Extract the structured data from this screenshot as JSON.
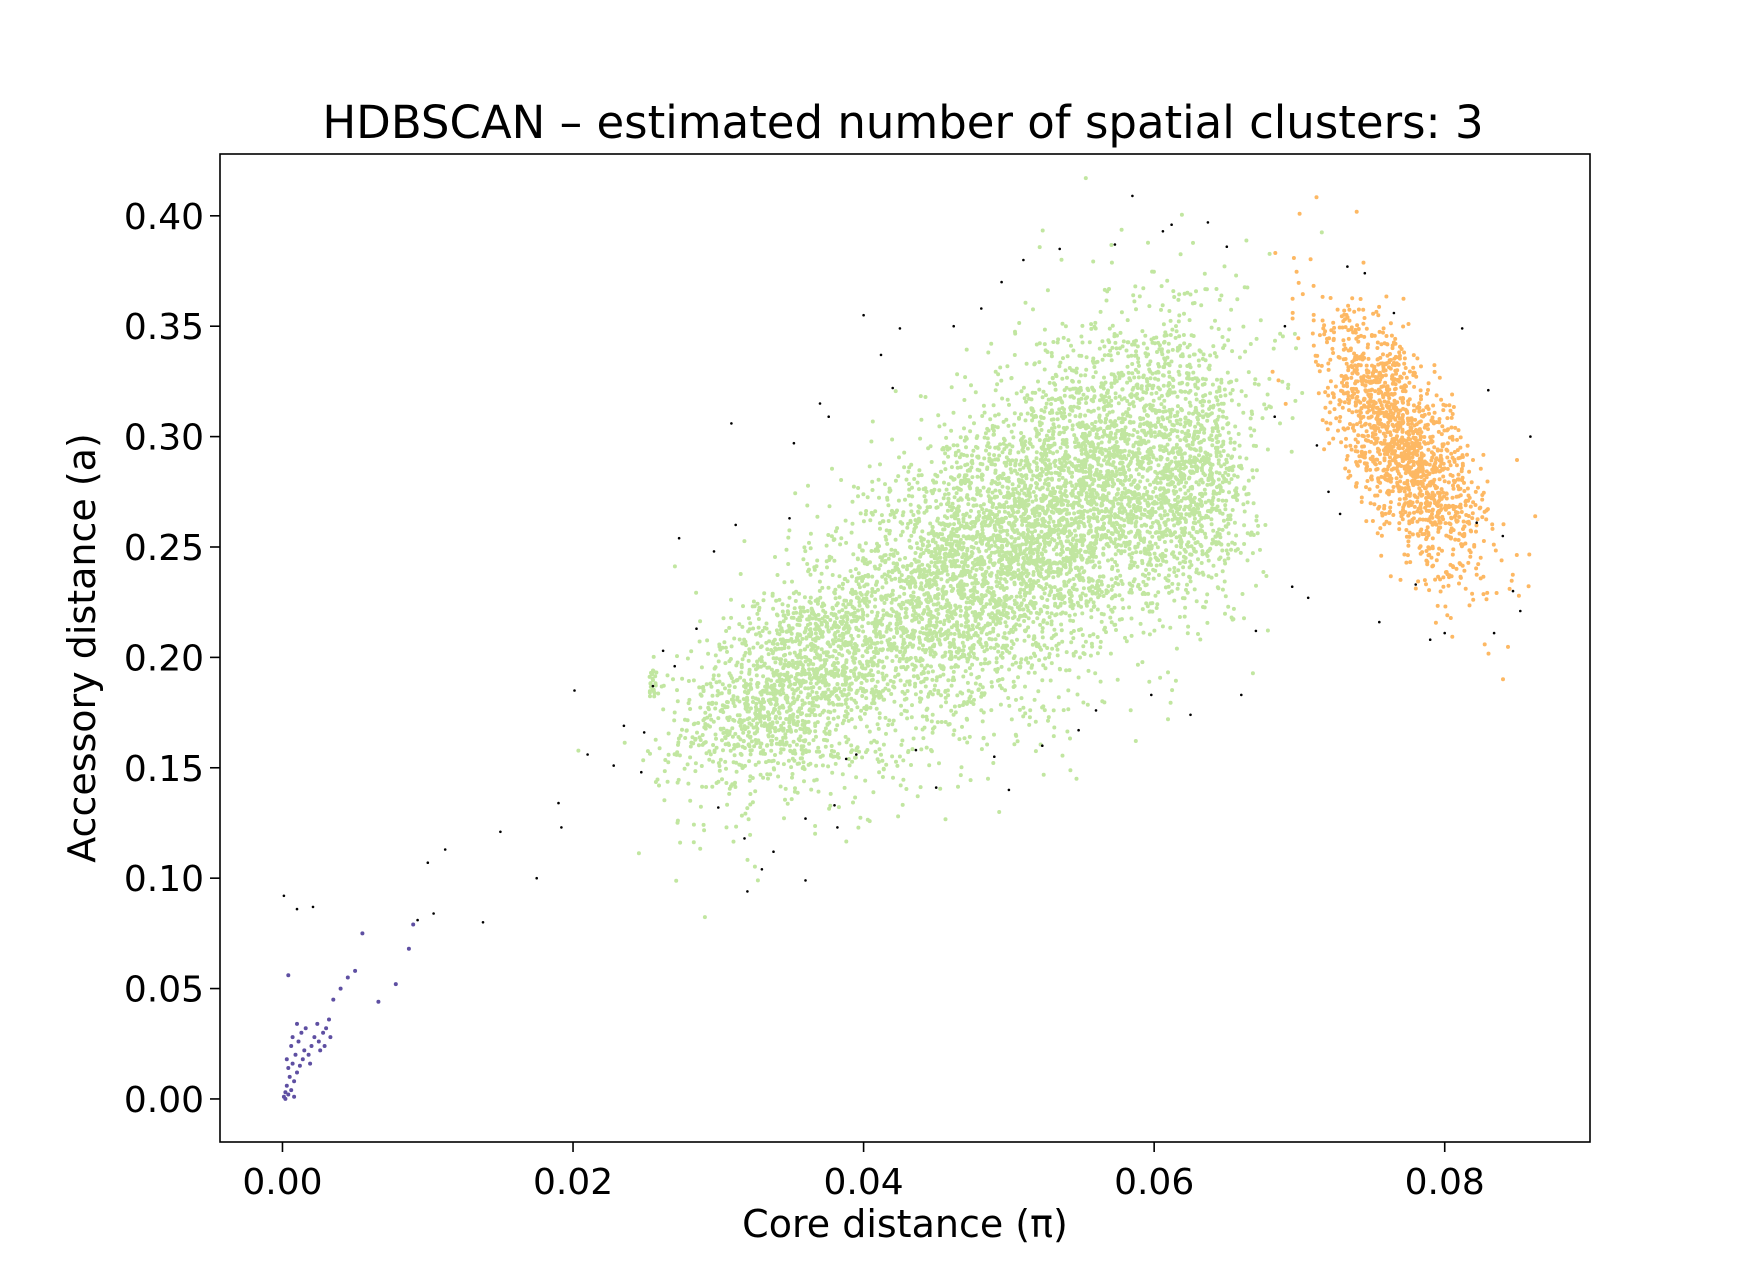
{
  "chart_data": {
    "type": "scatter",
    "title": "HDBSCAN – estimated number of spatial clusters: 3",
    "xlabel": "Core distance (π)",
    "ylabel": "Accessory distance (a)",
    "xlim": [
      -0.0043,
      0.09
    ],
    "ylim": [
      -0.0195,
      0.428
    ],
    "xticks": [
      {
        "value": 0.0,
        "label": "0.00"
      },
      {
        "value": 0.02,
        "label": "0.02"
      },
      {
        "value": 0.04,
        "label": "0.04"
      },
      {
        "value": 0.06,
        "label": "0.06"
      },
      {
        "value": 0.08,
        "label": "0.08"
      }
    ],
    "yticks": [
      {
        "value": 0.0,
        "label": "0.00"
      },
      {
        "value": 0.05,
        "label": "0.05"
      },
      {
        "value": 0.1,
        "label": "0.10"
      },
      {
        "value": 0.15,
        "label": "0.15"
      },
      {
        "value": 0.2,
        "label": "0.20"
      },
      {
        "value": 0.25,
        "label": "0.25"
      },
      {
        "value": 0.3,
        "label": "0.30"
      },
      {
        "value": 0.35,
        "label": "0.35"
      },
      {
        "value": 0.4,
        "label": "0.40"
      }
    ],
    "grid": false,
    "legend": "none",
    "series": [
      {
        "color": "#5e4fa2",
        "points": [
          [
            0.0002,
            0.0
          ],
          [
            0.0004,
            0.002
          ],
          [
            0.0006,
            0.004
          ],
          [
            0.0003,
            0.006
          ],
          [
            0.0008,
            0.008
          ],
          [
            0.0005,
            0.01
          ],
          [
            0.001,
            0.012
          ],
          [
            0.0004,
            0.014
          ],
          [
            0.0007,
            0.016
          ],
          [
            0.0012,
            0.015
          ],
          [
            0.0003,
            0.018
          ],
          [
            0.0009,
            0.02
          ],
          [
            0.0015,
            0.022
          ],
          [
            0.0006,
            0.024
          ],
          [
            0.0011,
            0.026
          ],
          [
            0.0018,
            0.02
          ],
          [
            0.002,
            0.024
          ],
          [
            0.0022,
            0.028
          ],
          [
            0.0025,
            0.026
          ],
          [
            0.0028,
            0.03
          ],
          [
            0.003,
            0.032
          ],
          [
            0.0013,
            0.03
          ],
          [
            0.0016,
            0.032
          ],
          [
            0.001,
            0.034
          ],
          [
            0.0024,
            0.034
          ],
          [
            0.0032,
            0.036
          ],
          [
            0.0035,
            0.045
          ],
          [
            0.004,
            0.05
          ],
          [
            0.0045,
            0.055
          ],
          [
            0.005,
            0.058
          ],
          [
            0.0004,
            0.056
          ],
          [
            0.0066,
            0.044
          ],
          [
            0.0078,
            0.052
          ],
          [
            0.0055,
            0.075
          ],
          [
            0.009,
            0.079
          ],
          [
            0.0087,
            0.068
          ],
          [
            0.0001,
            0.001
          ],
          [
            0.0002,
            0.003
          ],
          [
            0.0008,
            0.001
          ],
          [
            0.0014,
            0.018
          ],
          [
            0.0019,
            0.016
          ],
          [
            0.0026,
            0.022
          ],
          [
            0.0007,
            0.028
          ],
          [
            0.0029,
            0.024
          ],
          [
            0.0033,
            0.028
          ]
        ]
      },
      {
        "color": "#c1e6a0",
        "blobs": [
          {
            "cx": 0.0345,
            "cy": 0.185,
            "sx": 0.0035,
            "sy": 0.023,
            "rho": 0.4,
            "n": 1200
          },
          {
            "cx": 0.048,
            "cy": 0.24,
            "sx": 0.0065,
            "sy": 0.04,
            "rho": 0.55,
            "n": 3800
          },
          {
            "cx": 0.057,
            "cy": 0.285,
            "sx": 0.004,
            "sy": 0.038,
            "rho": 0.3,
            "n": 1600
          },
          {
            "cx": 0.063,
            "cy": 0.28,
            "sx": 0.002,
            "sy": 0.03,
            "rho": 0.1,
            "n": 700
          },
          {
            "cx": 0.0255,
            "cy": 0.191,
            "sx": 0.0002,
            "sy": 0.004,
            "rho": 0.0,
            "n": 25
          }
        ]
      },
      {
        "color": "#fdb863",
        "blobs": [
          {
            "cx": 0.0772,
            "cy": 0.295,
            "sx": 0.0028,
            "sy": 0.03,
            "rho": -0.7,
            "n": 1500
          }
        ]
      },
      {
        "color": "#000000",
        "points": [
          [
            0.0001,
            0.092
          ],
          [
            0.001,
            0.086
          ],
          [
            0.0021,
            0.087
          ],
          [
            0.0093,
            0.081
          ],
          [
            0.01,
            0.107
          ],
          [
            0.0104,
            0.084
          ],
          [
            0.0112,
            0.113
          ],
          [
            0.0138,
            0.08
          ],
          [
            0.015,
            0.121
          ],
          [
            0.0175,
            0.1
          ],
          [
            0.019,
            0.134
          ],
          [
            0.0192,
            0.123
          ],
          [
            0.0201,
            0.185
          ],
          [
            0.021,
            0.156
          ],
          [
            0.0228,
            0.151
          ],
          [
            0.0235,
            0.169
          ],
          [
            0.0247,
            0.148
          ],
          [
            0.0249,
            0.166
          ],
          [
            0.0255,
            0.187
          ],
          [
            0.0262,
            0.203
          ],
          [
            0.027,
            0.196
          ],
          [
            0.0273,
            0.254
          ],
          [
            0.0285,
            0.213
          ],
          [
            0.0297,
            0.248
          ],
          [
            0.03,
            0.132
          ],
          [
            0.0309,
            0.306
          ],
          [
            0.0312,
            0.26
          ],
          [
            0.0318,
            0.118
          ],
          [
            0.032,
            0.094
          ],
          [
            0.033,
            0.104
          ],
          [
            0.0338,
            0.112
          ],
          [
            0.0349,
            0.263
          ],
          [
            0.0352,
            0.297
          ],
          [
            0.036,
            0.127
          ],
          [
            0.036,
            0.099
          ],
          [
            0.037,
            0.315
          ],
          [
            0.0376,
            0.309
          ],
          [
            0.038,
            0.133
          ],
          [
            0.0382,
            0.123
          ],
          [
            0.0388,
            0.154
          ],
          [
            0.0395,
            0.156
          ],
          [
            0.04,
            0.355
          ],
          [
            0.0412,
            0.337
          ],
          [
            0.042,
            0.322
          ],
          [
            0.0425,
            0.349
          ],
          [
            0.0436,
            0.158
          ],
          [
            0.045,
            0.141
          ],
          [
            0.0462,
            0.35
          ],
          [
            0.0481,
            0.358
          ],
          [
            0.049,
            0.155
          ],
          [
            0.0495,
            0.37
          ],
          [
            0.05,
            0.14
          ],
          [
            0.051,
            0.38
          ],
          [
            0.0523,
            0.16
          ],
          [
            0.0535,
            0.385
          ],
          [
            0.0548,
            0.167
          ],
          [
            0.056,
            0.176
          ],
          [
            0.0573,
            0.387
          ],
          [
            0.0585,
            0.409
          ],
          [
            0.0598,
            0.183
          ],
          [
            0.0606,
            0.393
          ],
          [
            0.0612,
            0.396
          ],
          [
            0.0625,
            0.174
          ],
          [
            0.0637,
            0.397
          ],
          [
            0.065,
            0.386
          ],
          [
            0.066,
            0.183
          ],
          [
            0.067,
            0.212
          ],
          [
            0.0683,
            0.309
          ],
          [
            0.069,
            0.35
          ],
          [
            0.0695,
            0.232
          ],
          [
            0.0706,
            0.227
          ],
          [
            0.0712,
            0.296
          ],
          [
            0.072,
            0.275
          ],
          [
            0.0728,
            0.265
          ],
          [
            0.0733,
            0.377
          ],
          [
            0.0745,
            0.374
          ],
          [
            0.0755,
            0.216
          ],
          [
            0.0765,
            0.356
          ],
          [
            0.078,
            0.233
          ],
          [
            0.079,
            0.208
          ],
          [
            0.08,
            0.211
          ],
          [
            0.0812,
            0.349
          ],
          [
            0.0822,
            0.261
          ],
          [
            0.083,
            0.321
          ],
          [
            0.0834,
            0.211
          ],
          [
            0.084,
            0.255
          ],
          [
            0.0847,
            0.23
          ],
          [
            0.0852,
            0.221
          ],
          [
            0.0859,
            0.3
          ]
        ]
      }
    ]
  }
}
